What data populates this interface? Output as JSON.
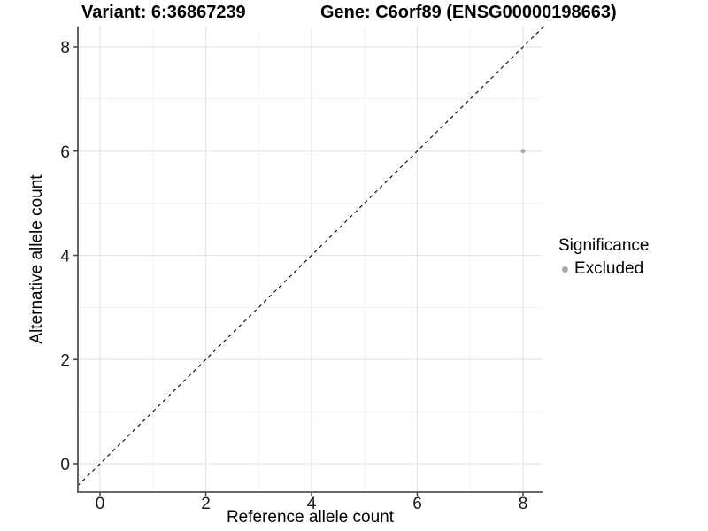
{
  "chart_data": {
    "type": "scatter",
    "title_left": "Variant: 6:36867239",
    "title_right": "Gene: C6orf89 (ENSG00000198663)",
    "xlabel": "Reference allele count",
    "ylabel": "Alternative allele count",
    "xlim": [
      -0.43,
      8.42
    ],
    "ylim": [
      -0.55,
      8.43
    ],
    "x_ticks": [
      0,
      2,
      4,
      6,
      8
    ],
    "y_ticks": [
      0,
      2,
      4,
      6,
      8
    ],
    "x_minor": [
      1,
      3,
      5,
      7
    ],
    "y_minor": [
      1,
      3,
      5,
      7
    ],
    "grid": true,
    "identity_line": {
      "style": "dashed",
      "from": [
        -0.43,
        -0.43
      ],
      "to": [
        8.42,
        8.42
      ]
    },
    "series": [
      {
        "name": "Excluded",
        "color": "#a9a9a9",
        "points": [
          {
            "x": 8,
            "y": 6
          }
        ]
      }
    ],
    "legend": {
      "title": "Significance",
      "position": "right",
      "items": [
        {
          "label": "Excluded",
          "color": "#a9a9a9"
        }
      ]
    },
    "colors": {
      "background": "#ffffff",
      "grid_major": "#e6e6e6",
      "grid_minor": "#f1f1f1",
      "axis_line": "#555555",
      "tick_mark": "#444444",
      "tick_label": "#1a1a1a",
      "identity_line": "#000000",
      "point": "#a9a9a9"
    }
  }
}
